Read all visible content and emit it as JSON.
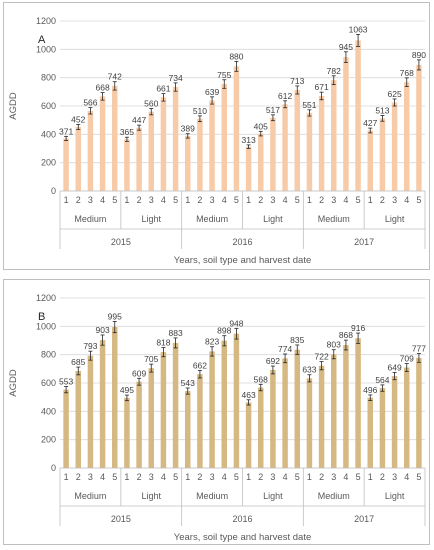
{
  "colors": {
    "bar_a": "#f8cba8",
    "bar_b": "#d6b882",
    "grid": "#d9d9d9",
    "error": "#262626"
  },
  "chart_data": [
    {
      "type": "bar",
      "panel_label": "A",
      "ylabel": "AGDD",
      "xlabel": "Years, soil type and harvest date",
      "ylim": [
        0,
        1200
      ],
      "yticks": [
        0,
        200,
        400,
        600,
        800,
        1000,
        1200
      ],
      "grid": true,
      "harvest_dates": [
        "1",
        "2",
        "3",
        "4",
        "5"
      ],
      "groups": [
        {
          "year": "2015",
          "soil": "Medium",
          "values": [
            371,
            452,
            566,
            668,
            742
          ]
        },
        {
          "year": "2015",
          "soil": "Light",
          "values": [
            365,
            447,
            560,
            661,
            734
          ]
        },
        {
          "year": "2016",
          "soil": "Medium",
          "values": [
            389,
            510,
            639,
            755,
            880
          ]
        },
        {
          "year": "2016",
          "soil": "Light",
          "values": [
            313,
            405,
            517,
            612,
            713
          ]
        },
        {
          "year": "2017",
          "soil": "Medium",
          "values": [
            551,
            671,
            782,
            945,
            1063
          ]
        },
        {
          "year": "2017",
          "soil": "Light",
          "values": [
            427,
            513,
            625,
            768,
            890
          ]
        }
      ]
    },
    {
      "type": "bar",
      "panel_label": "B",
      "ylabel": "AGDD",
      "xlabel": "Years, soil type and harvest date",
      "ylim": [
        0,
        1200
      ],
      "yticks": [
        0,
        200,
        400,
        600,
        800,
        1000,
        1200
      ],
      "grid": true,
      "harvest_dates": [
        "1",
        "2",
        "3",
        "4",
        "5"
      ],
      "groups": [
        {
          "year": "2015",
          "soil": "Medium",
          "values": [
            553,
            685,
            793,
            903,
            995
          ]
        },
        {
          "year": "2015",
          "soil": "Light",
          "values": [
            495,
            609,
            705,
            818,
            883
          ]
        },
        {
          "year": "2016",
          "soil": "Medium",
          "values": [
            543,
            662,
            823,
            898,
            948
          ]
        },
        {
          "year": "2016",
          "soil": "Light",
          "values": [
            463,
            568,
            692,
            774,
            835
          ]
        },
        {
          "year": "2017",
          "soil": "Medium",
          "values": [
            633,
            722,
            803,
            868,
            916
          ]
        },
        {
          "year": "2017",
          "soil": "Light",
          "values": [
            496,
            564,
            649,
            709,
            777
          ]
        }
      ]
    }
  ]
}
